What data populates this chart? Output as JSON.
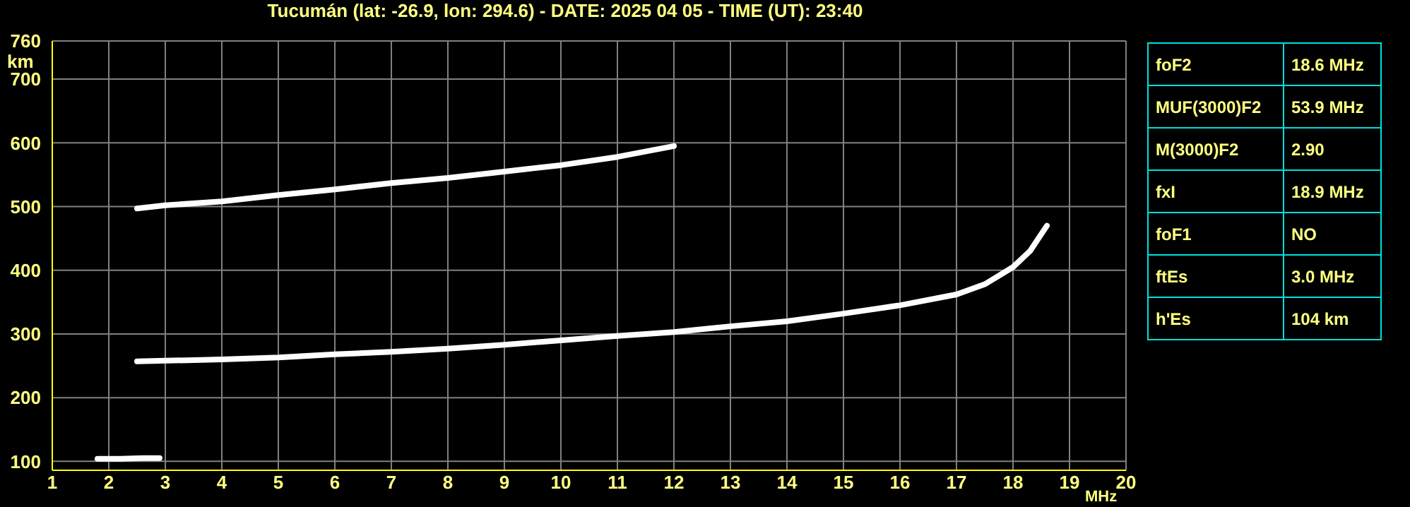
{
  "chart_data": [
    {
      "type": "line",
      "title": "Tucumán (lat: -26.9, lon: 294.6) - DATE: 2025 04 05 - TIME (UT): 23:40",
      "xlabel": "MHz",
      "ylabel": "km",
      "xlim": [
        1,
        20
      ],
      "xticks": [
        1,
        2,
        3,
        4,
        5,
        6,
        7,
        8,
        9,
        10,
        11,
        12,
        13,
        14,
        15,
        16,
        17,
        18,
        19,
        20
      ],
      "ylim": [
        86,
        760
      ],
      "yticks": [
        100,
        200,
        300,
        400,
        500,
        600,
        700,
        760
      ],
      "grid": true,
      "marker": "none",
      "series": [
        {
          "color": "#ffffff",
          "x": [
            1.8,
            2.2,
            2.6,
            2.9
          ],
          "values": [
            104,
            104,
            105,
            105
          ]
        },
        {
          "color": "#ffffff",
          "x": [
            2.5,
            3,
            4,
            5,
            6,
            7,
            8,
            9,
            10,
            11,
            12,
            13,
            14,
            15,
            16,
            17,
            17.5,
            18,
            18.3,
            18.6
          ],
          "values": [
            257,
            258,
            260,
            263,
            268,
            272,
            277,
            283,
            290,
            297,
            303,
            312,
            320,
            332,
            345,
            362,
            378,
            405,
            430,
            470
          ]
        },
        {
          "color": "#ffffff",
          "x": [
            2.5,
            3,
            4,
            5,
            6,
            7,
            8,
            9,
            10,
            11,
            12
          ],
          "values": [
            497,
            502,
            508,
            518,
            527,
            537,
            545,
            555,
            565,
            578,
            595
          ]
        }
      ]
    },
    {
      "type": "other",
      "categories": [
        "foF2",
        "MUF(3000)F2",
        "M(3000)F2",
        "fxI",
        "foF1",
        "ftEs",
        "h'Es"
      ],
      "value_labels": [
        "18.6 MHz",
        "53.9 MHz",
        "2.90",
        "18.9 MHz",
        "NO",
        "3.0 MHz",
        "104 km"
      ]
    }
  ]
}
